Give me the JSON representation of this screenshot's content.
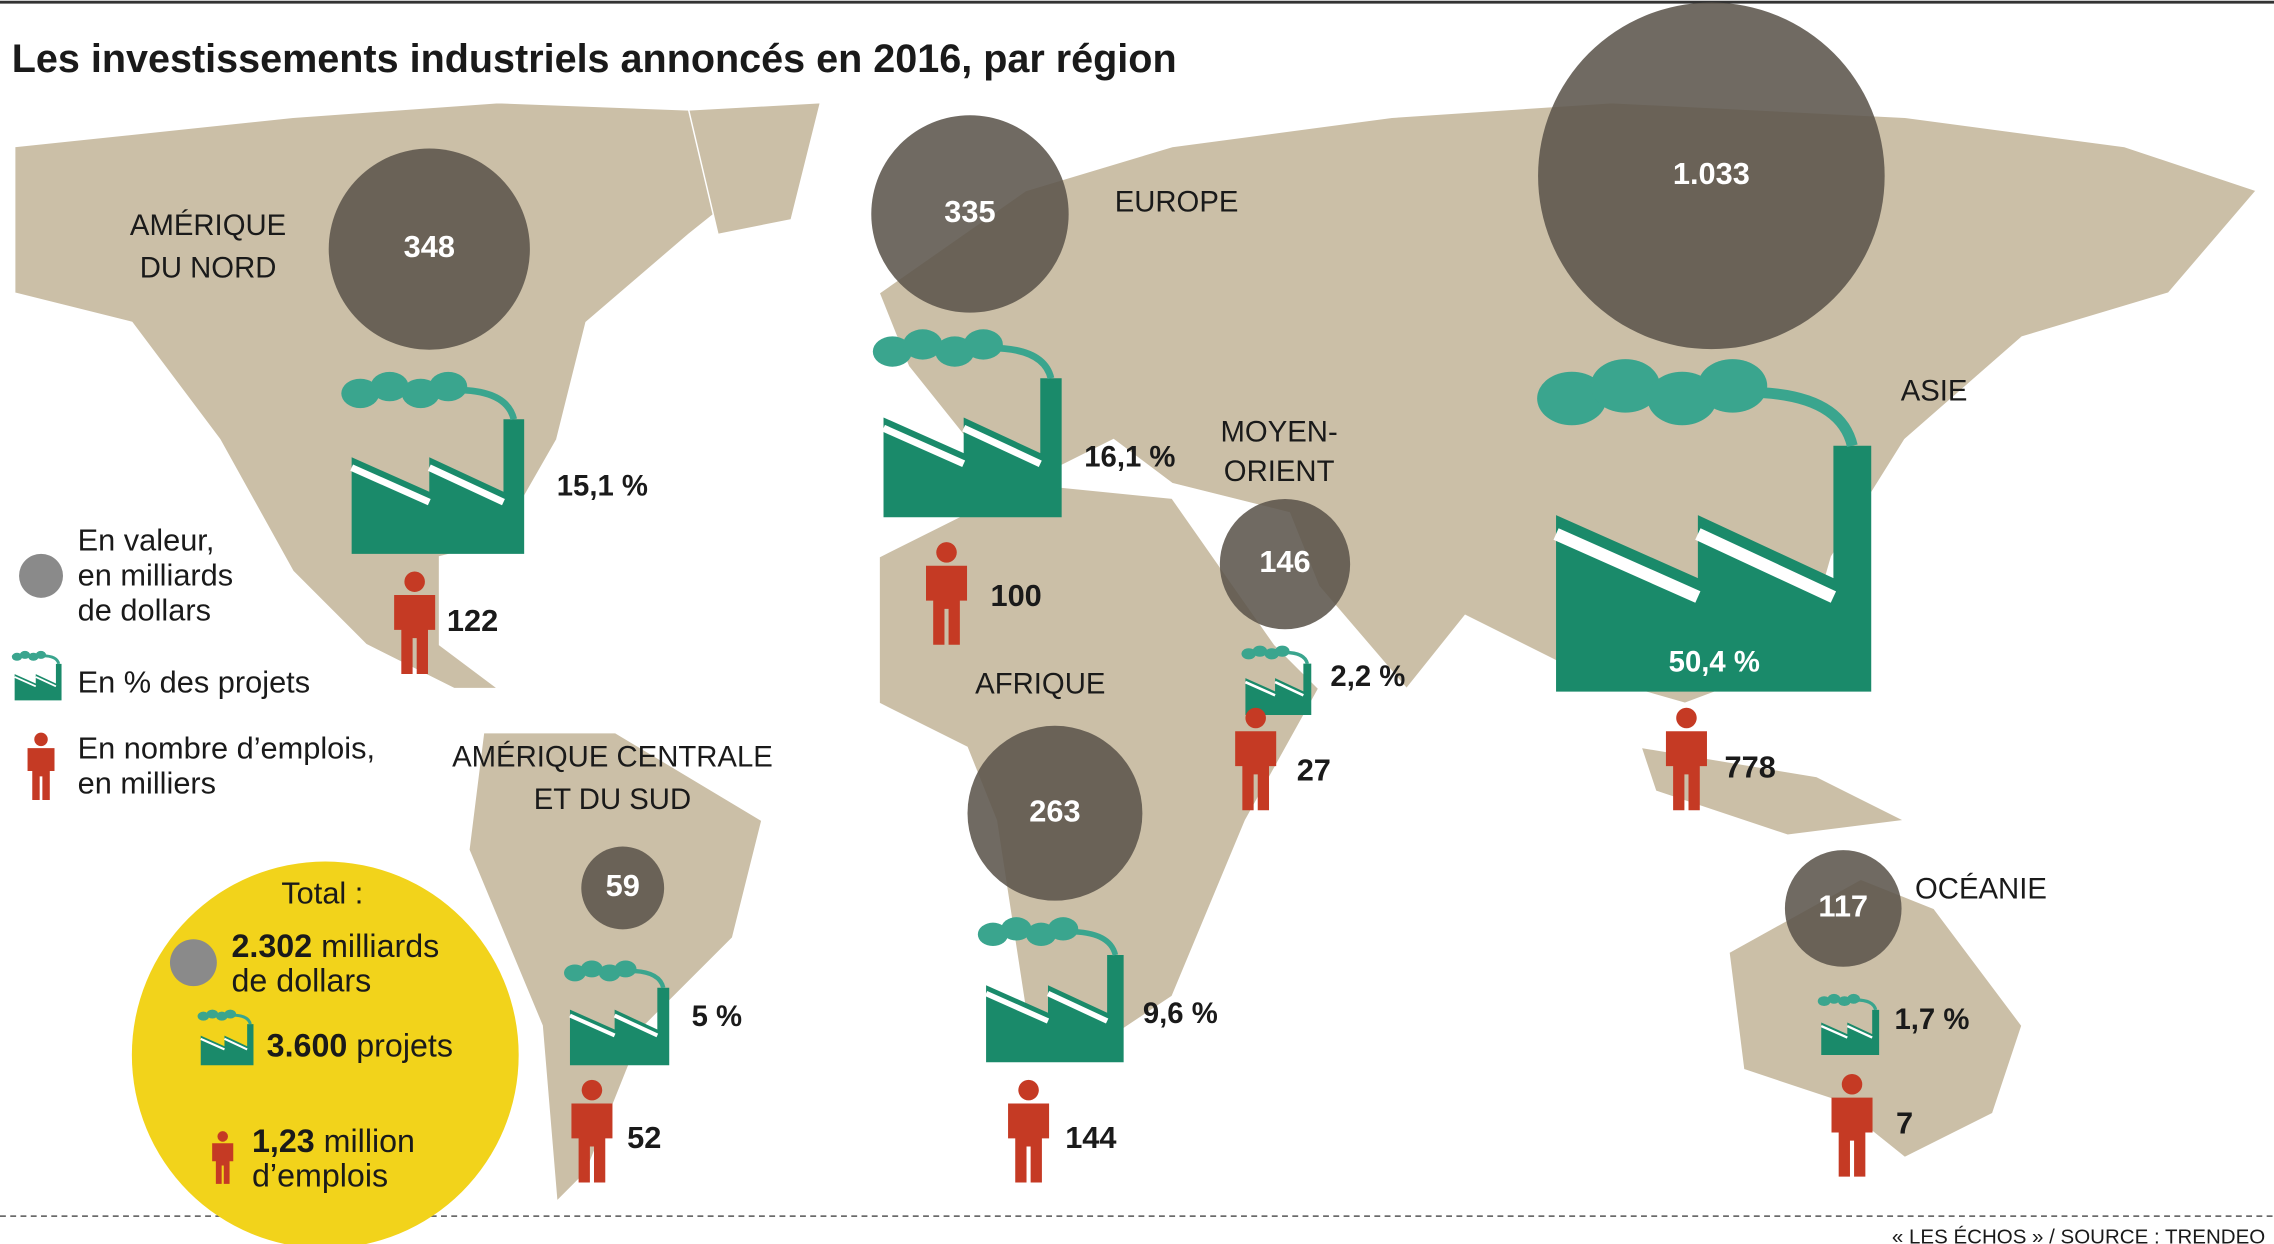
{
  "title": "Les investissements industriels annoncés en 2016, par région",
  "legend": {
    "value": [
      "En valeur,",
      "en milliards",
      "de dollars"
    ],
    "projects": "En % des projets",
    "jobs": [
      "En nombre d’emplois,",
      "en milliers"
    ]
  },
  "regions": [
    {
      "name": [
        "AMÉRIQUE",
        "DU NORD"
      ],
      "value": 348,
      "value_label": "348",
      "projects": 15.1,
      "projects_label": "15,1 %",
      "jobs": 122
    },
    {
      "name": [
        "EUROPE"
      ],
      "value": 335,
      "value_label": "335",
      "projects": 16.1,
      "projects_label": "16,1 %",
      "jobs": 100
    },
    {
      "name": [
        "MOYEN-",
        "ORIENT"
      ],
      "value": 146,
      "value_label": "146",
      "projects": 2.2,
      "projects_label": "2,2 %",
      "jobs": 27
    },
    {
      "name": [
        "ASIE"
      ],
      "value": 1033,
      "value_label": "1.033",
      "projects": 50.4,
      "projects_label": "50,4 %",
      "jobs": 778
    },
    {
      "name": [
        "AFRIQUE"
      ],
      "value": 263,
      "value_label": "263",
      "projects": 9.6,
      "projects_label": "9,6 %",
      "jobs": 144
    },
    {
      "name": [
        "AMÉRIQUE CENTRALE",
        "ET DU SUD"
      ],
      "value": 59,
      "value_label": "59",
      "projects": 5,
      "projects_label": "5 %",
      "jobs": 52
    },
    {
      "name": [
        "OCÉANIE"
      ],
      "value": 117,
      "value_label": "117",
      "projects": 1.7,
      "projects_label": "1,7 %",
      "jobs": 7
    }
  ],
  "total": {
    "title": "Total :",
    "value": {
      "number": "2.302",
      "text": "milliards",
      "text2": "de dollars"
    },
    "projects": {
      "number": "3.600",
      "text": "projets"
    },
    "jobs": {
      "number": "1,23",
      "text": "million",
      "text2": "d’emplois"
    }
  },
  "source": "« LES ÉCHOS » / SOURCE : TRENDEO"
}
